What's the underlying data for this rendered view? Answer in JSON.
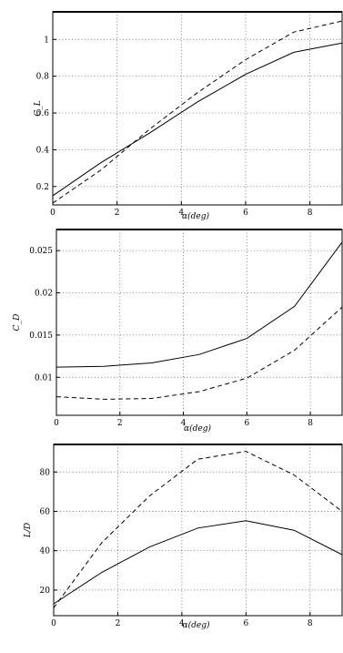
{
  "chart_data": [
    {
      "type": "line",
      "ylabel": "C_L",
      "xlabel": "α(deg)",
      "xlim": [
        0,
        9
      ],
      "ylim": [
        0.1,
        1.15
      ],
      "xticks": [
        0,
        2,
        4,
        6,
        8
      ],
      "yticks": [
        0.2,
        0.4,
        0.6,
        0.8,
        1
      ],
      "grid": true,
      "series": [
        {
          "style": "solid",
          "x": [
            0,
            1.5,
            3,
            4.5,
            6,
            7.5,
            9
          ],
          "y": [
            0.15,
            0.33,
            0.49,
            0.66,
            0.81,
            0.93,
            0.98
          ]
        },
        {
          "style": "dashed",
          "x": [
            0,
            1.5,
            3,
            4.5,
            6,
            7.5,
            9
          ],
          "y": [
            0.11,
            0.29,
            0.51,
            0.71,
            0.89,
            1.04,
            1.1
          ]
        }
      ]
    },
    {
      "type": "line",
      "ylabel": "C_D",
      "xlabel": "α(deg)",
      "xlim": [
        0,
        9
      ],
      "ylim": [
        0.0055,
        0.0275
      ],
      "xticks": [
        0,
        2,
        4,
        6,
        8
      ],
      "yticks": [
        0.01,
        0.015,
        0.02,
        0.025
      ],
      "yticklabels": [
        "0.01",
        "0.015",
        "0.02",
        "0.025"
      ],
      "grid": true,
      "series": [
        {
          "style": "solid",
          "x": [
            0,
            1.5,
            3,
            4.5,
            6,
            7.5,
            9
          ],
          "y": [
            0.0112,
            0.0113,
            0.0117,
            0.0127,
            0.0146,
            0.0184,
            0.026
          ]
        },
        {
          "style": "dashed",
          "x": [
            0,
            1.5,
            3,
            4.5,
            6,
            7.5,
            9
          ],
          "y": [
            0.0077,
            0.0074,
            0.0075,
            0.0083,
            0.0099,
            0.0132,
            0.0183
          ]
        }
      ]
    },
    {
      "type": "line",
      "ylabel": "L/D",
      "xlabel": "α(deg)",
      "xlim": [
        0,
        9
      ],
      "ylim": [
        7,
        94
      ],
      "xticks": [
        0,
        2,
        4,
        6,
        8
      ],
      "yticks": [
        20,
        40,
        60,
        80
      ],
      "grid": true,
      "series": [
        {
          "style": "solid",
          "x": [
            0,
            1.5,
            3,
            4.5,
            6,
            7.5,
            9
          ],
          "y": [
            13,
            29,
            42,
            51.5,
            55.2,
            50.4,
            38
          ]
        },
        {
          "style": "dashed",
          "x": [
            0,
            1.5,
            3,
            4.5,
            6,
            7.5,
            9
          ],
          "y": [
            11,
            44,
            68,
            86.5,
            90.5,
            78.5,
            60
          ]
        }
      ]
    }
  ]
}
